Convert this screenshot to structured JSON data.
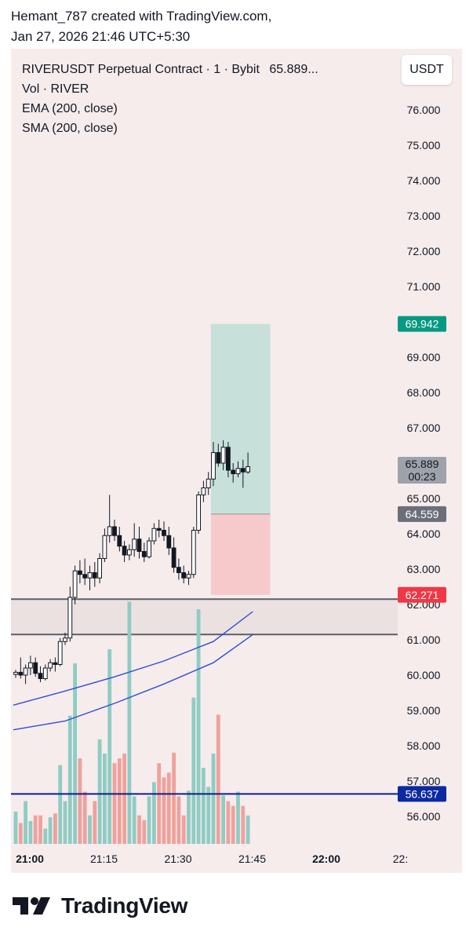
{
  "header": {
    "line1": "Hemant_787 created with TradingView.com,",
    "line2": "Jan 27, 2026 21:46 UTC+5:30"
  },
  "legend": {
    "symbol": "RIVERUSDT Perpetual Contract · 1 · Bybit",
    "price": "65.889...",
    "volume": "Vol · RIVER",
    "ema": "EMA (200, close)",
    "sma": "SMA (200, close)"
  },
  "currency_button": "USDT",
  "footer": {
    "brand": "TradingView"
  },
  "colors": {
    "background": "#f6ecec",
    "candle_body": "#ffffff",
    "candle_border": "#131722",
    "vol_up": "#8fccc3",
    "vol_down": "#f0a19c",
    "ma_line": "#2e4fd6",
    "hline": "#0c1f8a",
    "target_zone": "#c7e0da",
    "stop_zone": "#f6caca",
    "support_zone": "#ece1e1",
    "support_line": "#5c5f66",
    "tag_green": "#089981",
    "tag_red": "#f23645",
    "tag_grey": "#6b6f78",
    "tag_navy": "#0c2aa0"
  },
  "chart_data": {
    "type": "candlestick",
    "y_ticks": [
      "76.000",
      "75.000",
      "74.000",
      "73.000",
      "72.000",
      "71.000",
      "69.000",
      "68.000",
      "67.000",
      "65.000",
      "64.000",
      "63.000",
      "62.000",
      "61.000",
      "60.000",
      "59.000",
      "58.000",
      "57.000",
      "56.000"
    ],
    "ylim": [
      55.2,
      77.1
    ],
    "x_ticks": [
      {
        "label": "21:00",
        "bold": true,
        "t": 0
      },
      {
        "label": "21:15",
        "bold": false,
        "t": 15
      },
      {
        "label": "21:30",
        "bold": false,
        "t": 30
      },
      {
        "label": "21:45",
        "bold": false,
        "t": 45
      },
      {
        "label": "22:00",
        "bold": true,
        "t": 60
      },
      {
        "label": "22:",
        "bold": false,
        "t": 75
      }
    ],
    "price_tags": [
      {
        "name": "target",
        "label": "69.942",
        "value": 69.942,
        "color": "green"
      },
      {
        "name": "last-price",
        "label": "65.889",
        "sub": "00:23",
        "value": 65.889,
        "color": "grey-light"
      },
      {
        "name": "entry",
        "label": "64.559",
        "value": 64.559,
        "color": "grey"
      },
      {
        "name": "stop",
        "label": "62.271",
        "value": 62.271,
        "color": "red"
      },
      {
        "name": "level",
        "label": "56.637",
        "value": 56.637,
        "color": "navy"
      }
    ],
    "horizontal_line": 56.637,
    "support_zone": [
      61.15,
      62.15
    ],
    "position": {
      "t_start": 39.5,
      "t_end": 51.5,
      "target": 69.942,
      "entry": 64.559,
      "stop": 62.271
    },
    "ema_200": [
      [
        -0.5,
        59.15
      ],
      [
        10,
        59.55
      ],
      [
        20,
        59.95
      ],
      [
        30,
        60.4
      ],
      [
        40,
        60.95
      ],
      [
        48,
        61.8
      ]
    ],
    "sma_200": [
      [
        -0.5,
        58.45
      ],
      [
        10,
        58.7
      ],
      [
        20,
        59.2
      ],
      [
        30,
        59.75
      ],
      [
        40,
        60.35
      ],
      [
        48,
        61.15
      ]
    ],
    "candles": [
      {
        "t": 0,
        "o": 60.02,
        "h": 60.15,
        "l": 59.92,
        "c": 60.08,
        "v": 0.34
      },
      {
        "t": 1,
        "o": 60.08,
        "h": 60.5,
        "l": 59.9,
        "c": 60.0,
        "v": 0.22
      },
      {
        "t": 2,
        "o": 60.0,
        "h": 60.3,
        "l": 59.75,
        "c": 60.2,
        "v": 0.45
      },
      {
        "t": 3,
        "o": 60.2,
        "h": 60.55,
        "l": 60.0,
        "c": 60.35,
        "v": 0.24
      },
      {
        "t": 4,
        "o": 60.35,
        "h": 60.5,
        "l": 59.95,
        "c": 60.05,
        "v": 0.3
      },
      {
        "t": 5,
        "o": 60.05,
        "h": 60.25,
        "l": 59.8,
        "c": 59.9,
        "v": 0.3
      },
      {
        "t": 6,
        "o": 59.9,
        "h": 60.3,
        "l": 59.85,
        "c": 60.2,
        "v": 0.16
      },
      {
        "t": 7,
        "o": 60.2,
        "h": 60.45,
        "l": 60.1,
        "c": 60.35,
        "v": 0.28
      },
      {
        "t": 8,
        "o": 60.35,
        "h": 60.5,
        "l": 60.1,
        "c": 60.3,
        "v": 0.32
      },
      {
        "t": 9,
        "o": 60.3,
        "h": 61.05,
        "l": 60.25,
        "c": 60.95,
        "v": 0.83
      },
      {
        "t": 10,
        "o": 60.95,
        "h": 61.2,
        "l": 60.85,
        "c": 61.05,
        "v": 0.45
      },
      {
        "t": 11,
        "o": 61.05,
        "h": 62.5,
        "l": 60.95,
        "c": 62.2,
        "v": 1.35
      },
      {
        "t": 12,
        "o": 62.2,
        "h": 63.1,
        "l": 62.0,
        "c": 62.95,
        "v": 1.9
      },
      {
        "t": 13,
        "o": 62.95,
        "h": 63.25,
        "l": 62.6,
        "c": 62.85,
        "v": 0.9
      },
      {
        "t": 14,
        "o": 62.85,
        "h": 63.3,
        "l": 62.55,
        "c": 62.75,
        "v": 0.55
      },
      {
        "t": 15,
        "o": 62.75,
        "h": 63.1,
        "l": 62.4,
        "c": 62.9,
        "v": 0.3
      },
      {
        "t": 16,
        "o": 62.9,
        "h": 63.2,
        "l": 62.5,
        "c": 62.75,
        "v": 0.45
      },
      {
        "t": 17,
        "o": 62.75,
        "h": 63.45,
        "l": 62.6,
        "c": 63.3,
        "v": 1.1
      },
      {
        "t": 18,
        "o": 63.3,
        "h": 64.15,
        "l": 63.2,
        "c": 63.95,
        "v": 0.95
      },
      {
        "t": 19,
        "o": 63.95,
        "h": 65.1,
        "l": 63.75,
        "c": 64.2,
        "v": 2.05
      },
      {
        "t": 20,
        "o": 64.2,
        "h": 64.4,
        "l": 63.8,
        "c": 63.95,
        "v": 0.85
      },
      {
        "t": 21,
        "o": 63.95,
        "h": 64.2,
        "l": 63.5,
        "c": 63.65,
        "v": 0.9
      },
      {
        "t": 22,
        "o": 63.65,
        "h": 63.8,
        "l": 63.2,
        "c": 63.4,
        "v": 0.95
      },
      {
        "t": 23,
        "o": 63.4,
        "h": 63.7,
        "l": 63.25,
        "c": 63.55,
        "v": 2.55
      },
      {
        "t": 24,
        "o": 63.55,
        "h": 64.3,
        "l": 63.35,
        "c": 63.85,
        "v": 0.5
      },
      {
        "t": 25,
        "o": 63.85,
        "h": 64.2,
        "l": 63.3,
        "c": 63.5,
        "v": 0.3
      },
      {
        "t": 26,
        "o": 63.5,
        "h": 63.75,
        "l": 63.2,
        "c": 63.35,
        "v": 0.25
      },
      {
        "t": 27,
        "o": 63.35,
        "h": 63.9,
        "l": 63.3,
        "c": 63.8,
        "v": 0.5
      },
      {
        "t": 28,
        "o": 63.8,
        "h": 64.3,
        "l": 63.7,
        "c": 64.15,
        "v": 0.65
      },
      {
        "t": 29,
        "o": 64.15,
        "h": 64.4,
        "l": 63.9,
        "c": 64.1,
        "v": 0.85
      },
      {
        "t": 30,
        "o": 64.1,
        "h": 64.35,
        "l": 63.8,
        "c": 63.95,
        "v": 0.7
      },
      {
        "t": 31,
        "o": 63.95,
        "h": 64.2,
        "l": 63.4,
        "c": 63.6,
        "v": 0.75
      },
      {
        "t": 32,
        "o": 63.6,
        "h": 63.9,
        "l": 62.9,
        "c": 63.05,
        "v": 0.96
      },
      {
        "t": 33,
        "o": 63.05,
        "h": 63.3,
        "l": 62.7,
        "c": 62.9,
        "v": 0.5
      },
      {
        "t": 34,
        "o": 62.9,
        "h": 63.1,
        "l": 62.6,
        "c": 62.75,
        "v": 0.3
      },
      {
        "t": 35,
        "o": 62.75,
        "h": 62.95,
        "l": 62.55,
        "c": 62.85,
        "v": 0.56
      },
      {
        "t": 36,
        "o": 62.85,
        "h": 64.2,
        "l": 62.75,
        "c": 64.1,
        "v": 1.54
      },
      {
        "t": 37,
        "o": 64.1,
        "h": 65.2,
        "l": 64.0,
        "c": 65.1,
        "v": 2.47
      },
      {
        "t": 38,
        "o": 65.1,
        "h": 65.5,
        "l": 64.9,
        "c": 65.3,
        "v": 0.8
      },
      {
        "t": 39,
        "o": 65.3,
        "h": 65.75,
        "l": 65.1,
        "c": 65.55,
        "v": 0.6
      },
      {
        "t": 40,
        "o": 65.55,
        "h": 66.6,
        "l": 65.35,
        "c": 66.3,
        "v": 0.95
      },
      {
        "t": 41,
        "o": 66.3,
        "h": 66.55,
        "l": 65.9,
        "c": 66.0,
        "v": 1.36
      },
      {
        "t": 42,
        "o": 66.0,
        "h": 66.65,
        "l": 65.8,
        "c": 66.45,
        "v": 0.51
      },
      {
        "t": 43,
        "o": 66.45,
        "h": 66.6,
        "l": 65.6,
        "c": 65.8,
        "v": 0.45
      },
      {
        "t": 44,
        "o": 65.8,
        "h": 66.0,
        "l": 65.45,
        "c": 65.7,
        "v": 0.4
      },
      {
        "t": 45,
        "o": 65.7,
        "h": 66.05,
        "l": 65.6,
        "c": 65.85,
        "v": 0.55
      },
      {
        "t": 46,
        "o": 65.85,
        "h": 66.1,
        "l": 65.3,
        "c": 65.75,
        "v": 0.4
      },
      {
        "t": 47,
        "o": 65.75,
        "h": 66.3,
        "l": 65.7,
        "c": 65.9,
        "v": 0.3
      }
    ]
  }
}
